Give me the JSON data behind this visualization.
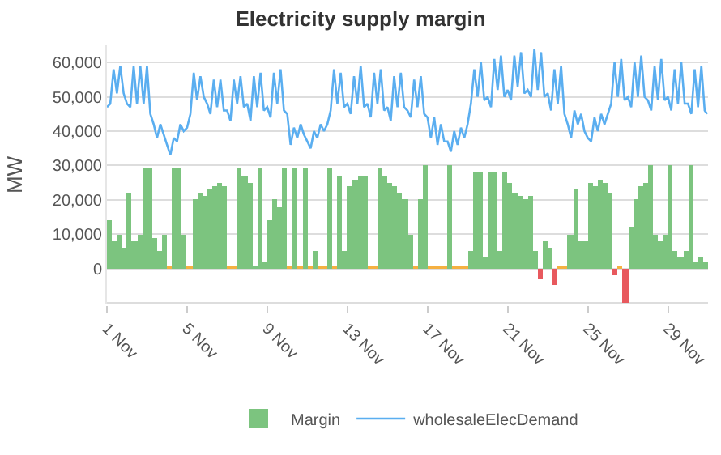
{
  "chart_data": {
    "type": "bar",
    "title": "Electricity supply margin",
    "ylabel": "MW",
    "xlim": [
      "--11-01",
      "--12-01"
    ],
    "xticks": [
      {
        "value": "--11-01",
        "label": "1 Nov"
      },
      {
        "value": "--11-05",
        "label": "5 Nov"
      },
      {
        "value": "--11-09",
        "label": "9 Nov"
      },
      {
        "value": "--11-13",
        "label": "13 Nov"
      },
      {
        "value": "--11-17",
        "label": "17 Nov"
      },
      {
        "value": "--11-21",
        "label": "21 Nov"
      },
      {
        "value": "--11-25",
        "label": "25 Nov"
      },
      {
        "value": "--11-29",
        "label": "29 Nov"
      }
    ],
    "ylim": [
      -10500,
      65000
    ],
    "yticks": [
      {
        "value": -10000,
        "label": null
      },
      0,
      {
        "value": 10000,
        "label": "10,000"
      },
      {
        "value": 20000,
        "label": "20,000"
      },
      {
        "value": 30000,
        "label": "30,000"
      },
      {
        "value": 40000,
        "label": "40,000"
      },
      {
        "value": 50000,
        "label": "50,000"
      },
      {
        "value": 60000,
        "label": "60,000"
      }
    ],
    "grid": "y",
    "legend": "bottom",
    "series": [
      {
        "name": "Margin",
        "color": "#7cc47f",
        "x": [
          "--11-01T00:00",
          "--11-01T06:00",
          "--11-01T12:00",
          "--11-01T18:00",
          "--11-02T00:00",
          "--11-02T06:00",
          "--11-02T12:00",
          "--11-02T18:00",
          "--11-03T00:00",
          "--11-03T06:00",
          "--11-03T12:00",
          "--11-03T18:00",
          "--11-04T00:00",
          "--11-04T06:00",
          "--11-04T12:00",
          "--11-04T18:00",
          "--11-05T00:00",
          "--11-05T06:00",
          "--11-05T12:00",
          "--11-05T18:00",
          "--11-06T00:00",
          "--11-06T06:00",
          "--11-06T12:00",
          "--11-06T18:00",
          "--11-07T00:00",
          "--11-07T06:00",
          "--11-07T12:00",
          "--11-07T18:00",
          "--11-08T00:00",
          "--11-08T06:00",
          "--11-08T12:00",
          "--11-08T18:00",
          "--11-09T00:00",
          "--11-09T06:00",
          "--11-09T12:00",
          "--11-09T18:00",
          "--11-10T00:00",
          "--11-10T06:00",
          "--11-10T12:00",
          "--11-10T18:00",
          "--11-11T00:00",
          "--11-11T06:00",
          "--11-11T12:00",
          "--11-11T18:00",
          "--11-12T00:00",
          "--11-12T06:00",
          "--11-12T12:00",
          "--11-12T18:00",
          "--11-13T00:00",
          "--11-13T06:00",
          "--11-13T12:00",
          "--11-13T18:00",
          "--11-14T00:00",
          "--11-14T06:00",
          "--11-14T12:00",
          "--11-14T18:00",
          "--11-15T00:00",
          "--11-15T06:00",
          "--11-15T12:00",
          "--11-15T18:00",
          "--11-16T00:00",
          "--11-16T06:00",
          "--11-16T12:00",
          "--11-16T18:00",
          "--11-17T00:00",
          "--11-17T06:00",
          "--11-17T12:00",
          "--11-17T18:00",
          "--11-18T00:00",
          "--11-18T06:00",
          "--11-18T12:00",
          "--11-18T18:00",
          "--11-19T00:00",
          "--11-19T06:00",
          "--11-19T12:00",
          "--11-19T18:00",
          "--11-20T00:00",
          "--11-20T06:00",
          "--11-20T12:00",
          "--11-20T18:00",
          "--11-21T00:00",
          "--11-21T06:00",
          "--11-21T12:00",
          "--11-21T18:00",
          "--11-22T00:00",
          "--11-22T06:00",
          "--11-22T12:00",
          "--11-22T18:00",
          "--11-23T00:00",
          "--11-23T06:00",
          "--11-23T12:00",
          "--11-23T18:00",
          "--11-24T00:00",
          "--11-24T06:00",
          "--11-24T12:00",
          "--11-24T18:00",
          "--11-25T00:00",
          "--11-25T06:00",
          "--11-25T12:00",
          "--11-25T18:00",
          "--11-26T00:00",
          "--11-26T06:00",
          "--11-26T12:00",
          "--11-26T18:00",
          "--11-27T00:00",
          "--11-27T06:00",
          "--11-27T12:00",
          "--11-27T18:00",
          "--11-28T00:00",
          "--11-28T06:00",
          "--11-28T12:00",
          "--11-28T18:00",
          "--11-29T00:00",
          "--11-29T06:00",
          "--11-29T12:00",
          "--11-29T18:00",
          "--11-30T00:00",
          "--11-30T06:00",
          "--11-30T12:00",
          "--11-30T18:00"
        ],
        "values": [
          14000,
          8000,
          10000,
          6000,
          22000,
          8000,
          10000,
          29000,
          29000,
          9000,
          5000,
          10000,
          500,
          29000,
          29000,
          10000,
          500,
          20000,
          22000,
          21000,
          23000,
          24000,
          25000,
          24000,
          500,
          500,
          29000,
          27000,
          25000,
          1000,
          29000,
          2000,
          14000,
          20000,
          18000,
          29000,
          500,
          29000,
          500,
          29000,
          500,
          5000,
          500,
          500,
          29000,
          500,
          27000,
          5000,
          24000,
          26000,
          27000,
          27000,
          500,
          500,
          29000,
          27000,
          25000,
          24000,
          22000,
          20000,
          10000,
          500,
          20000,
          30000,
          500,
          500,
          500,
          500,
          30000,
          500,
          500,
          500,
          5000,
          28000,
          28000,
          3000,
          28000,
          28000,
          5000,
          28000,
          25000,
          22000,
          21000,
          20000,
          21000,
          5000,
          -3000,
          8000,
          6000,
          -5000,
          500,
          500,
          10000,
          23000,
          8000,
          8000,
          25000,
          24000,
          26000,
          25000,
          22000,
          -2000,
          500,
          -10000,
          12000,
          20000,
          24000,
          25000,
          30000,
          10000,
          8000,
          10000,
          30000,
          5000,
          3000,
          5000,
          30000,
          2000,
          3000,
          2000
        ],
        "colors": [
          "#7cc47f",
          "#7cc47f",
          "#7cc47f",
          "#7cc47f",
          "#7cc47f",
          "#7cc47f",
          "#7cc47f",
          "#7cc47f",
          "#7cc47f",
          "#7cc47f",
          "#7cc47f",
          "#7cc47f",
          "#f5b041",
          "#7cc47f",
          "#7cc47f",
          "#7cc47f",
          "#f5b041",
          "#7cc47f",
          "#7cc47f",
          "#7cc47f",
          "#7cc47f",
          "#7cc47f",
          "#7cc47f",
          "#7cc47f",
          "#f5b041",
          "#f5b041",
          "#7cc47f",
          "#7cc47f",
          "#7cc47f",
          "#7cc47f",
          "#7cc47f",
          "#7cc47f",
          "#7cc47f",
          "#7cc47f",
          "#7cc47f",
          "#7cc47f",
          "#f5b041",
          "#7cc47f",
          "#f5b041",
          "#7cc47f",
          "#f5b041",
          "#7cc47f",
          "#f5b041",
          "#f5b041",
          "#7cc47f",
          "#f5b041",
          "#7cc47f",
          "#7cc47f",
          "#7cc47f",
          "#7cc47f",
          "#7cc47f",
          "#7cc47f",
          "#f5b041",
          "#f5b041",
          "#7cc47f",
          "#7cc47f",
          "#7cc47f",
          "#7cc47f",
          "#7cc47f",
          "#7cc47f",
          "#7cc47f",
          "#f5b041",
          "#7cc47f",
          "#7cc47f",
          "#f5b041",
          "#f5b041",
          "#f5b041",
          "#f5b041",
          "#7cc47f",
          "#f5b041",
          "#f5b041",
          "#f5b041",
          "#7cc47f",
          "#7cc47f",
          "#7cc47f",
          "#7cc47f",
          "#7cc47f",
          "#7cc47f",
          "#7cc47f",
          "#7cc47f",
          "#7cc47f",
          "#7cc47f",
          "#7cc47f",
          "#7cc47f",
          "#7cc47f",
          "#7cc47f",
          "#e8595e",
          "#7cc47f",
          "#7cc47f",
          "#e8595e",
          "#f5b041",
          "#f5b041",
          "#7cc47f",
          "#7cc47f",
          "#7cc47f",
          "#7cc47f",
          "#7cc47f",
          "#7cc47f",
          "#7cc47f",
          "#7cc47f",
          "#7cc47f",
          "#e8595e",
          "#f5b041",
          "#e8595e",
          "#7cc47f",
          "#7cc47f",
          "#7cc47f",
          "#7cc47f",
          "#7cc47f",
          "#7cc47f",
          "#7cc47f",
          "#7cc47f",
          "#7cc47f",
          "#7cc47f",
          "#7cc47f",
          "#7cc47f",
          "#7cc47f",
          "#7cc47f",
          "#7cc47f",
          "#7cc47f"
        ]
      },
      {
        "name": "wholesaleElecDemand",
        "type": "line",
        "color": "#5aaef0",
        "x": [
          "--11-01T00:00",
          "--11-01T04:00",
          "--11-01T08:00",
          "--11-01T12:00",
          "--11-01T16:00",
          "--11-01T20:00",
          "--11-02T00:00",
          "--11-02T04:00",
          "--11-02T08:00",
          "--11-02T12:00",
          "--11-02T16:00",
          "--11-02T20:00",
          "--11-03T00:00",
          "--11-03T04:00",
          "--11-03T08:00",
          "--11-03T12:00",
          "--11-03T16:00",
          "--11-03T20:00",
          "--11-04T00:00",
          "--11-04T04:00",
          "--11-04T08:00",
          "--11-04T12:00",
          "--11-04T16:00",
          "--11-04T20:00",
          "--11-05T00:00",
          "--11-05T04:00",
          "--11-05T08:00",
          "--11-05T12:00",
          "--11-05T16:00",
          "--11-05T20:00",
          "--11-06T00:00",
          "--11-06T04:00",
          "--11-06T08:00",
          "--11-06T12:00",
          "--11-06T16:00",
          "--11-06T20:00",
          "--11-07T00:00",
          "--11-07T04:00",
          "--11-07T08:00",
          "--11-07T12:00",
          "--11-07T16:00",
          "--11-07T20:00",
          "--11-08T00:00",
          "--11-08T04:00",
          "--11-08T08:00",
          "--11-08T12:00",
          "--11-08T16:00",
          "--11-08T20:00",
          "--11-09T00:00",
          "--11-09T04:00",
          "--11-09T08:00",
          "--11-09T12:00",
          "--11-09T16:00",
          "--11-09T20:00",
          "--11-10T00:00",
          "--11-10T04:00",
          "--11-10T08:00",
          "--11-10T12:00",
          "--11-10T16:00",
          "--11-10T20:00",
          "--11-11T00:00",
          "--11-11T04:00",
          "--11-11T08:00",
          "--11-11T12:00",
          "--11-11T16:00",
          "--11-11T20:00",
          "--11-12T00:00",
          "--11-12T04:00",
          "--11-12T08:00",
          "--11-12T12:00",
          "--11-12T16:00",
          "--11-12T20:00",
          "--11-13T00:00",
          "--11-13T04:00",
          "--11-13T08:00",
          "--11-13T12:00",
          "--11-13T16:00",
          "--11-13T20:00",
          "--11-14T00:00",
          "--11-14T04:00",
          "--11-14T08:00",
          "--11-14T12:00",
          "--11-14T16:00",
          "--11-14T20:00",
          "--11-15T00:00",
          "--11-15T04:00",
          "--11-15T08:00",
          "--11-15T12:00",
          "--11-15T16:00",
          "--11-15T20:00",
          "--11-16T00:00",
          "--11-16T04:00",
          "--11-16T08:00",
          "--11-16T12:00",
          "--11-16T16:00",
          "--11-16T20:00",
          "--11-17T00:00",
          "--11-17T04:00",
          "--11-17T08:00",
          "--11-17T12:00",
          "--11-17T16:00",
          "--11-17T20:00",
          "--11-18T00:00",
          "--11-18T04:00",
          "--11-18T08:00",
          "--11-18T12:00",
          "--11-18T16:00",
          "--11-18T20:00",
          "--11-19T00:00",
          "--11-19T04:00",
          "--11-19T08:00",
          "--11-19T12:00",
          "--11-19T16:00",
          "--11-19T20:00",
          "--11-20T00:00",
          "--11-20T04:00",
          "--11-20T08:00",
          "--11-20T12:00",
          "--11-20T16:00",
          "--11-20T20:00",
          "--11-21T00:00",
          "--11-21T04:00",
          "--11-21T08:00",
          "--11-21T12:00",
          "--11-21T16:00",
          "--11-21T20:00",
          "--11-22T00:00",
          "--11-22T04:00",
          "--11-22T08:00",
          "--11-22T12:00",
          "--11-22T16:00",
          "--11-22T20:00",
          "--11-23T00:00",
          "--11-23T04:00",
          "--11-23T08:00",
          "--11-23T12:00",
          "--11-23T16:00",
          "--11-23T20:00",
          "--11-24T00:00",
          "--11-24T04:00",
          "--11-24T08:00",
          "--11-24T12:00",
          "--11-24T16:00",
          "--11-24T20:00",
          "--11-25T00:00",
          "--11-25T04:00",
          "--11-25T08:00",
          "--11-25T12:00",
          "--11-25T16:00",
          "--11-25T20:00",
          "--11-26T00:00",
          "--11-26T04:00",
          "--11-26T08:00",
          "--11-26T12:00",
          "--11-26T16:00",
          "--11-26T20:00",
          "--11-27T00:00",
          "--11-27T04:00",
          "--11-27T08:00",
          "--11-27T12:00",
          "--11-27T16:00",
          "--11-27T20:00",
          "--11-28T00:00",
          "--11-28T04:00",
          "--11-28T08:00",
          "--11-28T12:00",
          "--11-28T16:00",
          "--11-28T20:00",
          "--11-29T00:00",
          "--11-29T04:00",
          "--11-29T08:00",
          "--11-29T12:00",
          "--11-29T16:00",
          "--11-29T20:00",
          "--11-30T00:00",
          "--11-30T04:00",
          "--11-30T08:00",
          "--11-30T12:00",
          "--11-30T16:00",
          "--11-30T20:00",
          "--11-30T23:00"
        ],
        "values": [
          47000,
          48000,
          58000,
          51000,
          59000,
          51000,
          48000,
          47000,
          59000,
          48000,
          59000,
          48000,
          59000,
          45000,
          42000,
          38000,
          42000,
          39000,
          36000,
          33000,
          38000,
          37000,
          42000,
          40000,
          41000,
          45000,
          57000,
          49000,
          56000,
          50000,
          48000,
          45000,
          55000,
          47000,
          55000,
          46000,
          46000,
          43000,
          55000,
          48000,
          56000,
          47000,
          48000,
          43000,
          56000,
          47000,
          57000,
          46000,
          47000,
          44000,
          57000,
          48000,
          58000,
          46000,
          45000,
          36000,
          41000,
          38000,
          42000,
          39000,
          37000,
          35000,
          40000,
          38000,
          42000,
          40000,
          42000,
          46000,
          58000,
          48000,
          57000,
          47000,
          48000,
          45000,
          56000,
          48000,
          59000,
          47000,
          48000,
          44000,
          57000,
          48000,
          58000,
          46000,
          47000,
          43000,
          56000,
          47000,
          57000,
          47000,
          46000,
          44000,
          55000,
          47000,
          56000,
          45000,
          44000,
          38000,
          44000,
          36000,
          42000,
          37000,
          37000,
          34000,
          40000,
          36000,
          41000,
          38000,
          42000,
          48000,
          58000,
          50000,
          60000,
          49000,
          50000,
          47000,
          61000,
          52000,
          62000,
          50000,
          52000,
          49000,
          62000,
          53000,
          63000,
          51000,
          52000,
          50000,
          64000,
          52000,
          63000,
          50000,
          51000,
          46000,
          58000,
          48000,
          59000,
          45000,
          42000,
          38000,
          46000,
          42000,
          45000,
          40000,
          38000,
          37000,
          44000,
          40000,
          45000,
          42000,
          45000,
          48000,
          60000,
          50000,
          61000,
          49000,
          50000,
          47000,
          60000,
          50000,
          62000,
          50000,
          49000,
          46000,
          59000,
          49000,
          61000,
          49000,
          50000,
          46000,
          58000,
          48000,
          60000,
          48000,
          48000,
          45000,
          58000,
          47000,
          59000,
          46000,
          45000
        ]
      }
    ]
  }
}
